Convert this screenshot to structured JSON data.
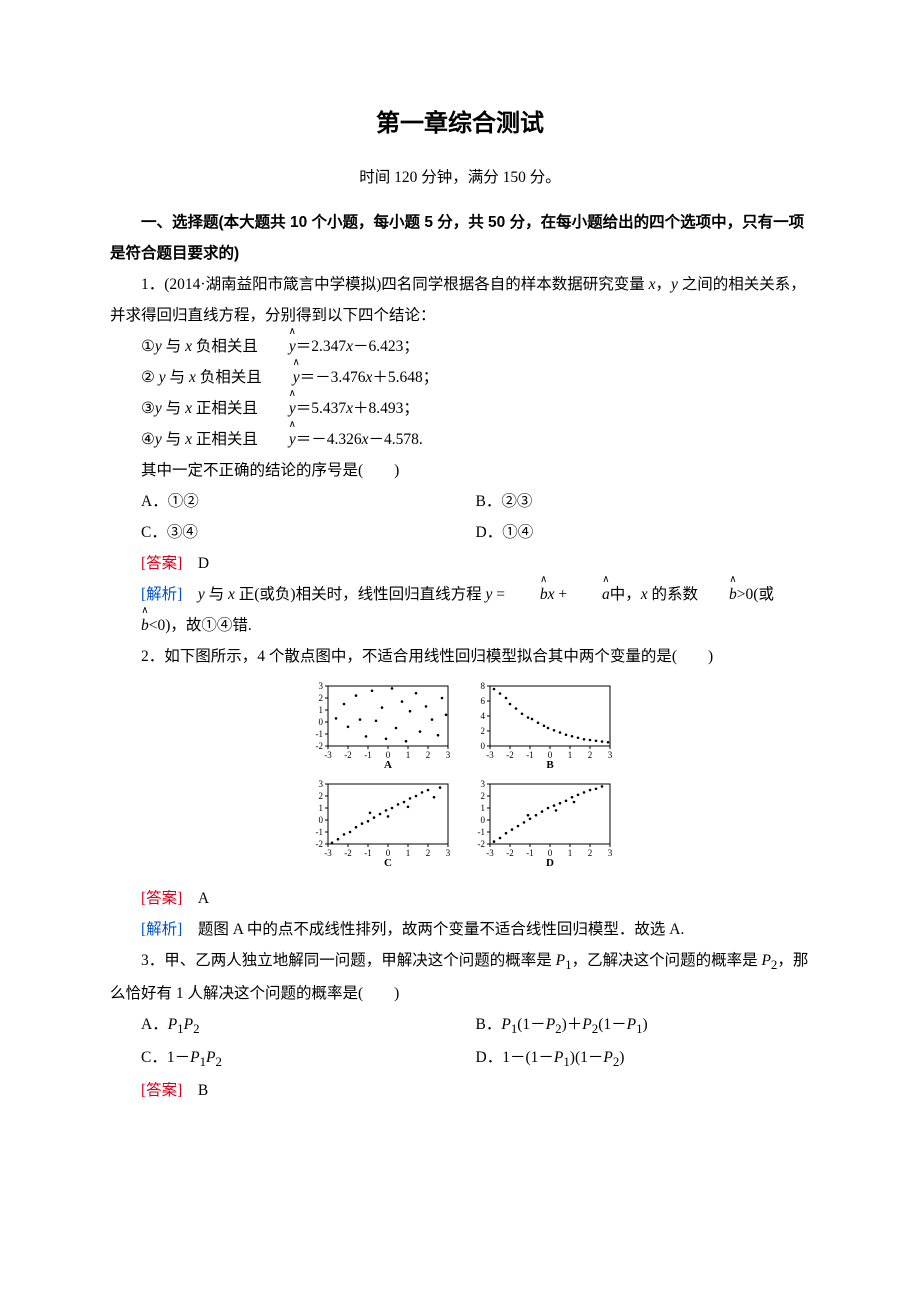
{
  "doc": {
    "title": "第一章综合测试",
    "subtitle": "时间 120 分钟，满分 150 分。",
    "section1_lead": "一、选择题(本大题共 10 个小题，每小题 5 分，共 50 分，在每小题给出的四个选项中，只有一项是符合题目要求的)"
  },
  "q1": {
    "stem_a": "1．(2014·湖南益阳市箴言中学模拟)四名同学根据各自的样本数据研究变量 ",
    "stem_b": " 之间的相关关系，并求得回归直线方程，分别得到以下四个结论：",
    "var_x": "x",
    "var_y": "y",
    "var_sep": "，",
    "l1_a": "①",
    "l1_b": " 与 ",
    "l1_c": " 负相关且",
    "l1_eq": "＝2.347",
    "l1_d": "－6.423；",
    "l2_a": "② ",
    "l2_b": " 与 ",
    "l2_c": " 负相关且",
    "l2_eq": "＝－3.476",
    "l2_d": "＋5.648；",
    "l3_a": "③",
    "l3_b": " 与 ",
    "l3_c": " 正相关且",
    "l3_eq": "＝5.437",
    "l3_d": "＋8.493；",
    "l4_a": "④",
    "l4_b": " 与 ",
    "l4_c": " 正相关且",
    "l4_eq": "＝－4.326",
    "l4_d": "－4.578.",
    "ask": "其中一定不正确的结论的序号是(　　)",
    "optA": "A．①②",
    "optB": "B．②③",
    "optC": "C．③④",
    "optD": "D．①④",
    "ans_label": "[答案]",
    "ans": "　D",
    "exp_label": "[解析]",
    "exp_a": "　",
    "exp_b": " 与 ",
    "exp_c": " 正(或负)相关时，线性回归直线方程 ",
    "exp_eq_y": "y",
    "exp_eq_eq": " = ",
    "exp_eq_bx": "x",
    "exp_eq_plus": " + ",
    "exp_eq_mid": "中，",
    "exp_d": " 的系数",
    "exp_e": ">0(或",
    "exp_f": "<0)，故①④错."
  },
  "q2": {
    "stem": "2．如下图所示，4 个散点图中，不适合用线性回归模型拟合其中两个变量的是(　　)",
    "ans_label": "[答案]",
    "ans": "　A",
    "exp_label": "[解析]",
    "exp": "　题图 A 中的点不成线性排列，故两个变量不适合线性回归模型．故选 A.",
    "fig": {
      "bg": "#ffffff",
      "axis_color": "#000000",
      "point_color": "#000000",
      "x_ticks": [
        "-3",
        "-2",
        "-1",
        "0",
        "1",
        "2",
        "3"
      ],
      "plots": [
        {
          "label": "A",
          "y_ticks": [
            "-2",
            "-1",
            "0",
            "1",
            "2",
            "3"
          ],
          "ylim": [
            -2,
            3
          ],
          "pts": [
            [
              -2.6,
              0.3
            ],
            [
              -2.2,
              1.5
            ],
            [
              -2.0,
              -0.4
            ],
            [
              -1.6,
              2.2
            ],
            [
              -1.4,
              0.2
            ],
            [
              -1.1,
              -1.2
            ],
            [
              -0.8,
              2.6
            ],
            [
              -0.6,
              0.1
            ],
            [
              -0.3,
              1.2
            ],
            [
              -0.1,
              -1.4
            ],
            [
              0.2,
              2.8
            ],
            [
              0.4,
              -0.5
            ],
            [
              0.7,
              1.7
            ],
            [
              0.9,
              -1.6
            ],
            [
              1.1,
              0.9
            ],
            [
              1.4,
              2.4
            ],
            [
              1.6,
              -0.8
            ],
            [
              1.9,
              1.3
            ],
            [
              2.2,
              0.2
            ],
            [
              2.5,
              -1.1
            ],
            [
              2.7,
              2.0
            ],
            [
              2.9,
              0.6
            ]
          ]
        },
        {
          "label": "B",
          "y_ticks": [
            "0",
            "2",
            "4",
            "6",
            "8"
          ],
          "ylim": [
            0,
            8
          ],
          "pts": [
            [
              -2.8,
              7.6
            ],
            [
              -2.5,
              7.0
            ],
            [
              -2.2,
              6.4
            ],
            [
              -2.0,
              5.6
            ],
            [
              -1.7,
              5.0
            ],
            [
              -1.4,
              4.3
            ],
            [
              -1.1,
              3.8
            ],
            [
              -0.9,
              3.6
            ],
            [
              -0.6,
              3.1
            ],
            [
              -0.3,
              2.7
            ],
            [
              -0.1,
              2.4
            ],
            [
              0.2,
              2.1
            ],
            [
              0.5,
              1.8
            ],
            [
              0.8,
              1.5
            ],
            [
              1.1,
              1.3
            ],
            [
              1.4,
              1.1
            ],
            [
              1.7,
              0.9
            ],
            [
              2.0,
              0.8
            ],
            [
              2.3,
              0.7
            ],
            [
              2.6,
              0.6
            ],
            [
              2.9,
              0.5
            ]
          ]
        },
        {
          "label": "C",
          "y_ticks": [
            "-2",
            "-1",
            "0",
            "1",
            "2",
            "3"
          ],
          "ylim": [
            -2,
            3
          ],
          "pts": [
            [
              -2.8,
              -1.9
            ],
            [
              -2.5,
              -1.6
            ],
            [
              -2.2,
              -1.2
            ],
            [
              -1.9,
              -1.0
            ],
            [
              -1.6,
              -0.6
            ],
            [
              -1.3,
              -0.3
            ],
            [
              -1.0,
              -0.1
            ],
            [
              -0.7,
              0.2
            ],
            [
              -0.4,
              0.5
            ],
            [
              -0.1,
              0.8
            ],
            [
              0.2,
              1.0
            ],
            [
              0.5,
              1.3
            ],
            [
              0.8,
              1.5
            ],
            [
              1.1,
              1.8
            ],
            [
              1.4,
              2.0
            ],
            [
              1.7,
              2.3
            ],
            [
              2.0,
              2.5
            ],
            [
              2.3,
              1.9
            ],
            [
              2.6,
              2.7
            ],
            [
              -0.9,
              0.6
            ],
            [
              0.0,
              0.3
            ],
            [
              1.0,
              1.1
            ]
          ]
        },
        {
          "label": "D",
          "y_ticks": [
            "-2",
            "-1",
            "0",
            "1",
            "2",
            "3"
          ],
          "ylim": [
            -2,
            3
          ],
          "pts": [
            [
              -2.8,
              -1.8
            ],
            [
              -2.5,
              -1.5
            ],
            [
              -2.2,
              -1.1
            ],
            [
              -1.9,
              -0.8
            ],
            [
              -1.6,
              -0.5
            ],
            [
              -1.3,
              -0.2
            ],
            [
              -1.0,
              0.1
            ],
            [
              -0.7,
              0.4
            ],
            [
              -0.4,
              0.7
            ],
            [
              -0.1,
              1.0
            ],
            [
              0.2,
              1.2
            ],
            [
              0.5,
              1.4
            ],
            [
              0.8,
              1.6
            ],
            [
              1.1,
              1.9
            ],
            [
              1.4,
              2.1
            ],
            [
              1.7,
              2.3
            ],
            [
              2.0,
              2.5
            ],
            [
              2.3,
              2.6
            ],
            [
              2.6,
              2.8
            ],
            [
              -1.1,
              0.4
            ],
            [
              0.3,
              0.8
            ],
            [
              1.2,
              1.5
            ]
          ]
        }
      ]
    }
  },
  "q3": {
    "stem_a": "3．甲、乙两人独立地解同一问题，甲解决这个问题的概率是 ",
    "stem_b": "，乙解决这个问题的概率是 ",
    "stem_c": "，那么恰好有 1 人解决这个问题的概率是(　　)",
    "P1": "P",
    "P1sub": "1",
    "P2": "P",
    "P2sub": "2",
    "optA_a": "A．",
    "optA_b": "",
    "optB_a": "B．",
    "optB_b": "(1－",
    "optB_c": ")＋",
    "optB_d": "(1－",
    "optB_e": ")",
    "optC_a": "C．1－",
    "optD_a": "D．1－(1－",
    "optD_b": ")(1－",
    "optD_c": ")",
    "ans_label": "[答案]",
    "ans": "　B"
  }
}
